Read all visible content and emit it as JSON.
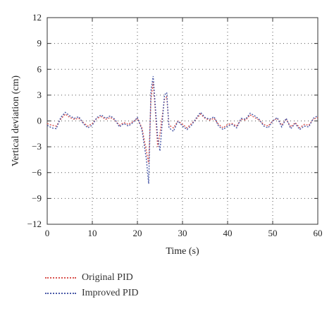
{
  "chart_data": {
    "type": "line",
    "title": "",
    "xlabel": "Time (s)",
    "ylabel": "Vertical deviation (cm)",
    "xlim": [
      0,
      60
    ],
    "ylim": [
      -12,
      12
    ],
    "x_ticks": [
      0,
      10,
      20,
      30,
      40,
      50,
      60
    ],
    "x_tick_labels": [
      "0",
      "10",
      "20",
      "30",
      "40",
      "50",
      "60"
    ],
    "y_ticks": [
      12,
      9,
      6,
      3,
      0,
      -3,
      -6,
      -9,
      -12
    ],
    "y_tick_labels": [
      "12",
      "9",
      "6",
      "3",
      "0",
      "−3",
      "−6",
      "−9",
      "−12"
    ],
    "grid": true,
    "legend_position": "below",
    "series": [
      {
        "name": "Original PID",
        "color": "#d9534f",
        "style": "dotted",
        "points": [
          [
            0,
            -0.3
          ],
          [
            1,
            -0.5
          ],
          [
            2,
            -0.6
          ],
          [
            3,
            0.2
          ],
          [
            4,
            0.8
          ],
          [
            5,
            0.4
          ],
          [
            6,
            0.2
          ],
          [
            7,
            0.3
          ],
          [
            8,
            -0.2
          ],
          [
            9,
            -0.6
          ],
          [
            10,
            -0.3
          ],
          [
            11,
            0.3
          ],
          [
            12,
            0.5
          ],
          [
            13,
            0.2
          ],
          [
            14,
            0.4
          ],
          [
            15,
            0.1
          ],
          [
            16,
            -0.5
          ],
          [
            17,
            -0.2
          ],
          [
            18,
            -0.4
          ],
          [
            19,
            -0.1
          ],
          [
            20,
            0.3
          ],
          [
            21,
            -0.8
          ],
          [
            22,
            -3.5
          ],
          [
            22.5,
            -5.0
          ],
          [
            23,
            2.5
          ],
          [
            23.5,
            4.5
          ],
          [
            24,
            1.0
          ],
          [
            24.5,
            -3.0
          ],
          [
            25,
            -1.5
          ],
          [
            26,
            2.5
          ],
          [
            26.5,
            2.8
          ],
          [
            27,
            -0.5
          ],
          [
            28,
            -0.8
          ],
          [
            29,
            0.0
          ],
          [
            30,
            -0.4
          ],
          [
            31,
            -0.8
          ],
          [
            32,
            -0.3
          ],
          [
            33,
            0.2
          ],
          [
            34,
            0.8
          ],
          [
            35,
            0.3
          ],
          [
            36,
            0.1
          ],
          [
            37,
            0.3
          ],
          [
            38,
            -0.4
          ],
          [
            39,
            -0.8
          ],
          [
            40,
            -0.4
          ],
          [
            41,
            -0.3
          ],
          [
            42,
            -0.6
          ],
          [
            43,
            0.2
          ],
          [
            44,
            0.1
          ],
          [
            45,
            0.7
          ],
          [
            46,
            0.4
          ],
          [
            47,
            0.1
          ],
          [
            48,
            -0.4
          ],
          [
            49,
            -0.6
          ],
          [
            50,
            0.0
          ],
          [
            51,
            0.3
          ],
          [
            52,
            -0.5
          ],
          [
            53,
            0.2
          ],
          [
            54,
            -0.7
          ],
          [
            55,
            -0.2
          ],
          [
            56,
            -0.8
          ],
          [
            57,
            -0.4
          ],
          [
            58,
            -0.5
          ],
          [
            59,
            0.2
          ],
          [
            60,
            0.4
          ]
        ]
      },
      {
        "name": "Improved PID",
        "color": "#4a5aa8",
        "style": "dotted",
        "points": [
          [
            0,
            -0.5
          ],
          [
            1,
            -0.8
          ],
          [
            2,
            -0.9
          ],
          [
            3,
            0.4
          ],
          [
            4,
            1.0
          ],
          [
            5,
            0.6
          ],
          [
            6,
            0.3
          ],
          [
            7,
            0.5
          ],
          [
            8,
            -0.3
          ],
          [
            9,
            -0.8
          ],
          [
            10,
            -0.5
          ],
          [
            11,
            0.4
          ],
          [
            12,
            0.7
          ],
          [
            13,
            0.3
          ],
          [
            14,
            0.6
          ],
          [
            15,
            0.2
          ],
          [
            16,
            -0.7
          ],
          [
            17,
            -0.3
          ],
          [
            18,
            -0.6
          ],
          [
            19,
            -0.2
          ],
          [
            20,
            0.4
          ],
          [
            21,
            -1.0
          ],
          [
            22,
            -4.5
          ],
          [
            22.5,
            -7.3
          ],
          [
            23,
            3.5
          ],
          [
            23.5,
            5.2
          ],
          [
            24,
            1.5
          ],
          [
            24.5,
            -2.0
          ],
          [
            25,
            -3.5
          ],
          [
            26,
            3.0
          ],
          [
            26.5,
            3.3
          ],
          [
            27,
            -0.8
          ],
          [
            28,
            -1.2
          ],
          [
            29,
            0.0
          ],
          [
            30,
            -0.6
          ],
          [
            31,
            -1.0
          ],
          [
            32,
            -0.5
          ],
          [
            33,
            0.3
          ],
          [
            34,
            1.0
          ],
          [
            35,
            0.4
          ],
          [
            36,
            0.2
          ],
          [
            37,
            0.5
          ],
          [
            38,
            -0.6
          ],
          [
            39,
            -1.0
          ],
          [
            40,
            -0.6
          ],
          [
            41,
            -0.4
          ],
          [
            42,
            -0.8
          ],
          [
            43,
            0.3
          ],
          [
            44,
            0.2
          ],
          [
            45,
            0.9
          ],
          [
            46,
            0.6
          ],
          [
            47,
            0.2
          ],
          [
            48,
            -0.6
          ],
          [
            49,
            -0.8
          ],
          [
            50,
            0.0
          ],
          [
            51,
            0.4
          ],
          [
            52,
            -0.7
          ],
          [
            53,
            0.3
          ],
          [
            54,
            -0.9
          ],
          [
            55,
            -0.3
          ],
          [
            56,
            -1.0
          ],
          [
            57,
            -0.6
          ],
          [
            58,
            -0.7
          ],
          [
            59,
            0.3
          ],
          [
            60,
            0.6
          ]
        ]
      }
    ]
  }
}
